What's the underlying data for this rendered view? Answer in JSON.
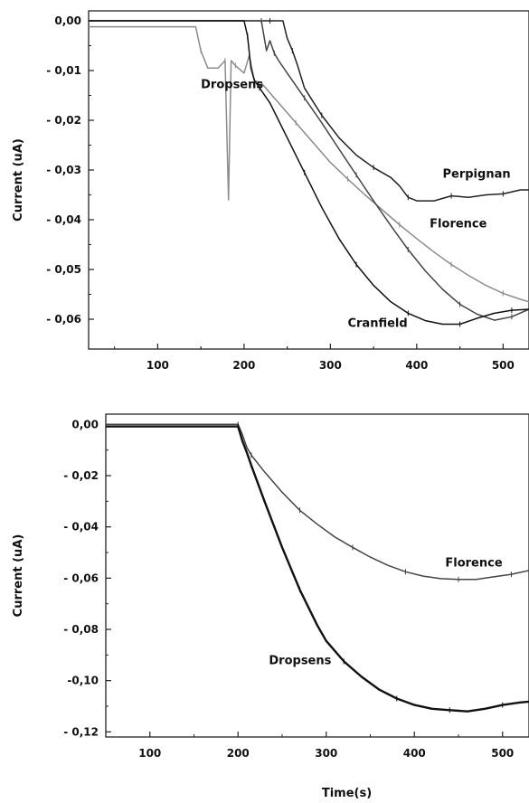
{
  "chart_data": [
    {
      "type": "line",
      "title": "",
      "xlabel": "",
      "ylabel": "Current (uA)",
      "xlim": [
        20,
        530
      ],
      "ylim": [
        -0.066,
        0.002
      ],
      "grid": false,
      "legend": "none (series labelled inline)",
      "x_ticks": [
        {
          "value": 100,
          "label": "100"
        },
        {
          "value": 200,
          "label": "200"
        },
        {
          "value": 300,
          "label": "300"
        },
        {
          "value": 400,
          "label": "400"
        },
        {
          "value": 500,
          "label": "500"
        }
      ],
      "y_ticks": [
        {
          "value": 0,
          "label": "0,00"
        },
        {
          "value": -0.01,
          "label": "- 0,01"
        },
        {
          "value": -0.02,
          "label": "- 0,02"
        },
        {
          "value": -0.03,
          "label": "- 0,03"
        },
        {
          "value": -0.04,
          "label": "- 0,04"
        },
        {
          "value": -0.05,
          "label": "- 0,05"
        },
        {
          "value": -0.06,
          "label": "- 0,06"
        }
      ],
      "series": [
        {
          "name": "Dropsens",
          "color": "#8c8c8c",
          "x": [
            20,
            100,
            144,
            150,
            158,
            170,
            178,
            182,
            185,
            190,
            200,
            206,
            212,
            220,
            240,
            260,
            280,
            300,
            320,
            340,
            360,
            380,
            400,
            420,
            440,
            460,
            480,
            500,
            520,
            530
          ],
          "y": [
            -0.0012,
            -0.0012,
            -0.0012,
            -0.006,
            -0.0095,
            -0.0095,
            -0.008,
            -0.036,
            -0.008,
            -0.009,
            -0.0105,
            -0.007,
            -0.012,
            -0.0125,
            -0.0165,
            -0.0205,
            -0.0245,
            -0.0285,
            -0.0318,
            -0.035,
            -0.038,
            -0.041,
            -0.0438,
            -0.0465,
            -0.049,
            -0.0512,
            -0.0532,
            -0.0548,
            -0.056,
            -0.0565
          ]
        },
        {
          "name": "Perpignan",
          "color": "#222222",
          "x": [
            20,
            100,
            200,
            230,
            245,
            250,
            256,
            262,
            270,
            290,
            310,
            330,
            350,
            370,
            380,
            390,
            400,
            420,
            440,
            460,
            480,
            500,
            520,
            530
          ],
          "y": [
            0,
            0,
            0,
            0,
            0,
            -0.0035,
            -0.006,
            -0.009,
            -0.0135,
            -0.019,
            -0.0235,
            -0.027,
            -0.0295,
            -0.0315,
            -0.0332,
            -0.0355,
            -0.0362,
            -0.0362,
            -0.0352,
            -0.0355,
            -0.035,
            -0.0348,
            -0.034,
            -0.034
          ]
        },
        {
          "name": "Florence",
          "color": "#444444",
          "x": [
            20,
            100,
            200,
            220,
            226,
            230,
            235,
            240,
            250,
            270,
            290,
            310,
            330,
            350,
            370,
            390,
            410,
            430,
            450,
            470,
            490,
            510,
            530
          ],
          "y": [
            0,
            0,
            0,
            0,
            -0.006,
            -0.004,
            -0.0065,
            -0.008,
            -0.0105,
            -0.0155,
            -0.0205,
            -0.0258,
            -0.031,
            -0.0362,
            -0.0412,
            -0.046,
            -0.0503,
            -0.054,
            -0.057,
            -0.059,
            -0.0602,
            -0.0595,
            -0.058
          ]
        },
        {
          "name": "Cranfield",
          "color": "#111111",
          "x": [
            20,
            100,
            200,
            204,
            208,
            212,
            218,
            230,
            250,
            270,
            290,
            310,
            330,
            350,
            370,
            390,
            410,
            430,
            450,
            470,
            490,
            510,
            530
          ],
          "y": [
            0,
            0,
            0,
            -0.003,
            -0.0095,
            -0.012,
            -0.0135,
            -0.0165,
            -0.0235,
            -0.0305,
            -0.0375,
            -0.0438,
            -0.049,
            -0.0532,
            -0.0565,
            -0.0588,
            -0.0603,
            -0.061,
            -0.061,
            -0.0598,
            -0.0588,
            -0.0582,
            -0.058
          ]
        }
      ],
      "annotations": [
        {
          "text": "Dropsens",
          "x": 150,
          "y": -0.0135
        },
        {
          "text": "Perpignan",
          "x": 430,
          "y": -0.0315
        },
        {
          "text": "Florence",
          "x": 415,
          "y": -0.0415
        },
        {
          "text": "Cranfield",
          "x": 320,
          "y": -0.0615
        }
      ]
    },
    {
      "type": "line",
      "title": "",
      "xlabel": "Time(s)",
      "ylabel": "Current (uA)",
      "xlim": [
        50,
        530
      ],
      "ylim": [
        -0.122,
        0.004
      ],
      "grid": false,
      "legend": "none (series labelled inline)",
      "x_ticks": [
        {
          "value": 100,
          "label": "100"
        },
        {
          "value": 200,
          "label": "200"
        },
        {
          "value": 300,
          "label": "300"
        },
        {
          "value": 400,
          "label": "400"
        },
        {
          "value": 500,
          "label": "500"
        }
      ],
      "y_ticks": [
        {
          "value": 0,
          "label": "0,00"
        },
        {
          "value": -0.02,
          "label": "- 0,02"
        },
        {
          "value": -0.04,
          "label": "- 0,04"
        },
        {
          "value": -0.06,
          "label": "- 0,06"
        },
        {
          "value": -0.08,
          "label": "- 0,08"
        },
        {
          "value": -0.1,
          "label": "-0,10"
        },
        {
          "value": -0.12,
          "label": "- 0,12"
        }
      ],
      "series": [
        {
          "name": "Florence",
          "color": "#444444",
          "x": [
            50,
            100,
            150,
            200,
            205,
            210,
            215,
            230,
            250,
            270,
            290,
            310,
            330,
            350,
            370,
            390,
            410,
            430,
            450,
            470,
            490,
            510,
            530
          ],
          "y": [
            0,
            0,
            0,
            0,
            -0.004,
            -0.009,
            -0.012,
            -0.0185,
            -0.0265,
            -0.0335,
            -0.039,
            -0.044,
            -0.048,
            -0.0518,
            -0.055,
            -0.0575,
            -0.0592,
            -0.0602,
            -0.0605,
            -0.0605,
            -0.0595,
            -0.0585,
            -0.057
          ]
        },
        {
          "name": "Dropsens",
          "color": "#111111",
          "x": [
            50,
            100,
            150,
            200,
            205,
            210,
            215,
            230,
            250,
            270,
            290,
            300,
            320,
            340,
            360,
            380,
            400,
            420,
            440,
            460,
            480,
            500,
            520,
            530
          ],
          "y": [
            -0.0008,
            -0.0008,
            -0.0008,
            -0.0008,
            -0.0065,
            -0.011,
            -0.016,
            -0.03,
            -0.048,
            -0.0645,
            -0.0785,
            -0.0845,
            -0.0925,
            -0.0985,
            -0.1035,
            -0.107,
            -0.1095,
            -0.111,
            -0.1115,
            -0.112,
            -0.111,
            -0.1095,
            -0.1085,
            -0.1082
          ]
        }
      ],
      "annotations": [
        {
          "text": "Florence",
          "x": 435,
          "y": -0.0555
        },
        {
          "text": "Dropsens",
          "x": 235,
          "y": -0.0935
        }
      ]
    }
  ]
}
